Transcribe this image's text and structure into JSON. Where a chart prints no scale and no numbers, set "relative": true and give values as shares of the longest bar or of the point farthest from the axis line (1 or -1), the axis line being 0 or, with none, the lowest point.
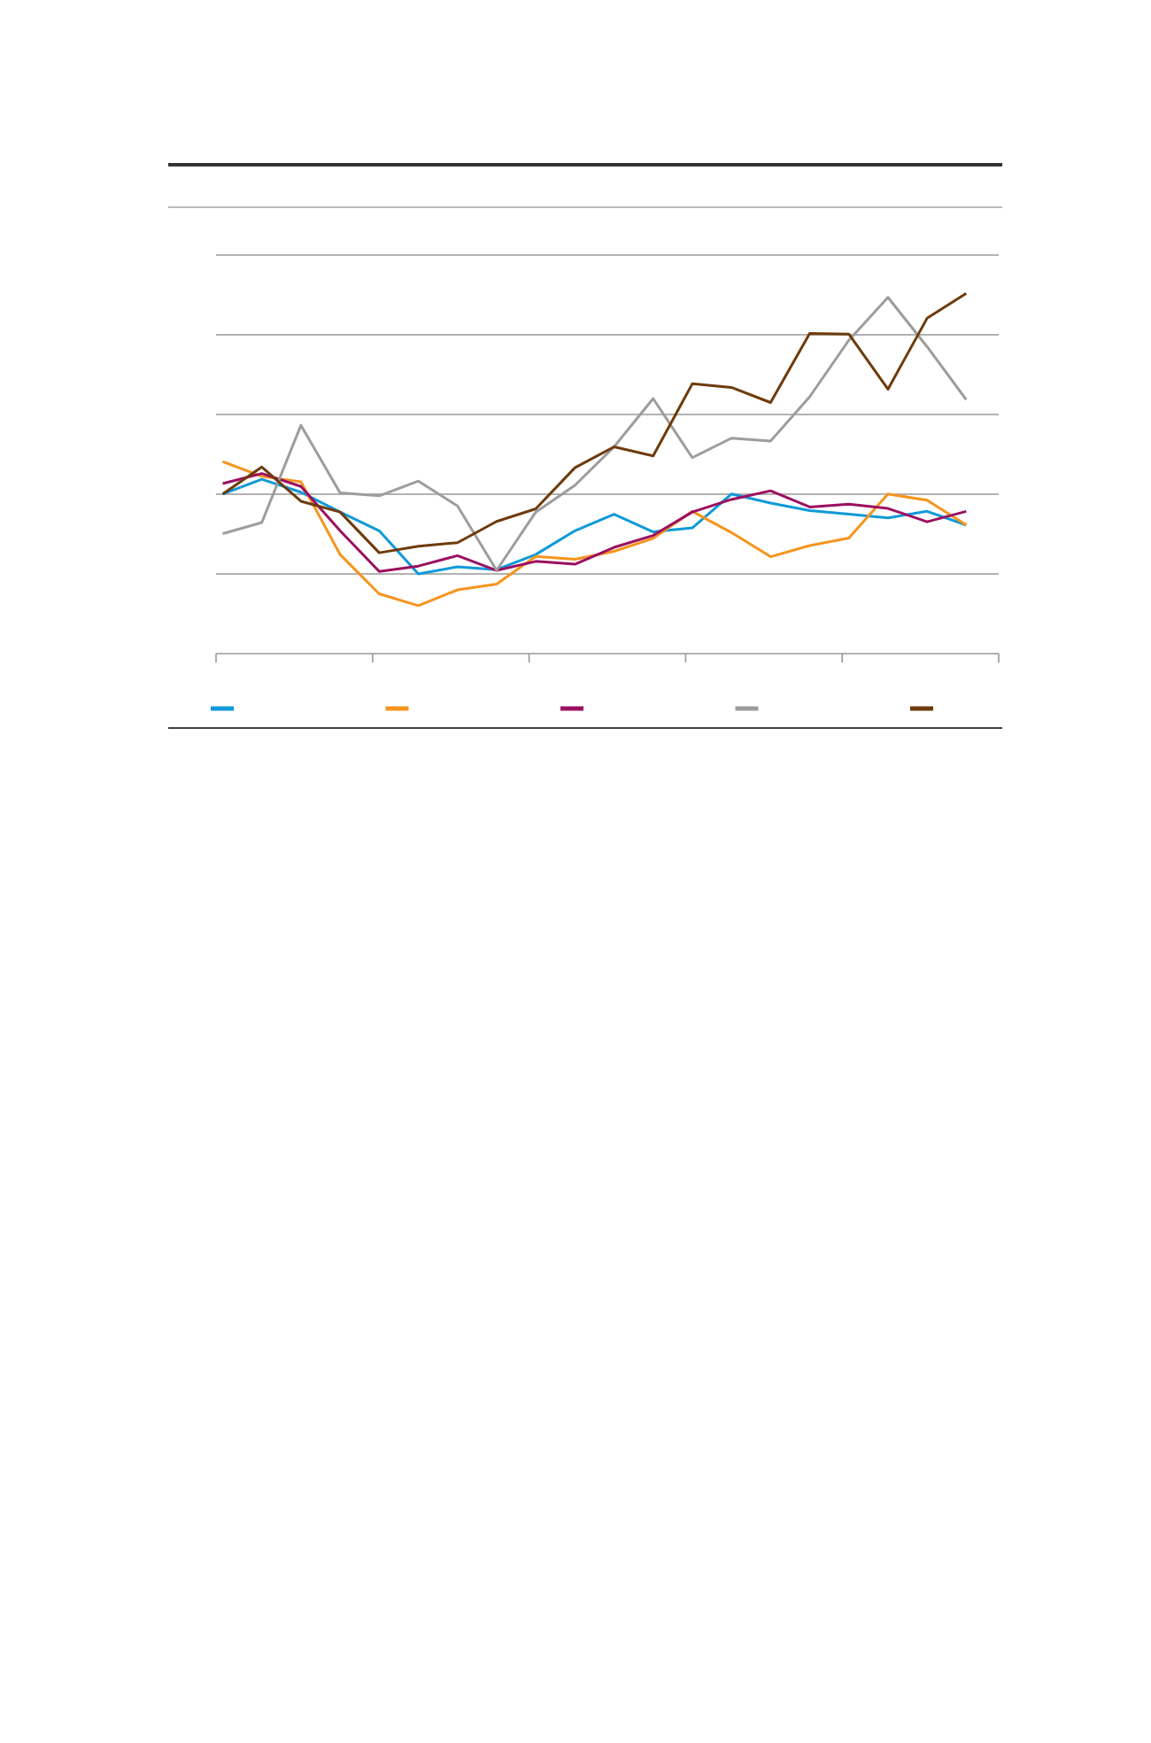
{
  "chart_data": {
    "type": "line",
    "relative": true,
    "grid": "y",
    "marker": "none",
    "line_style": "solid",
    "categories": [
      null,
      null,
      null,
      null,
      null,
      null,
      null,
      null,
      null,
      null,
      null,
      null,
      null,
      null,
      null,
      null,
      null,
      null,
      null,
      null
    ],
    "series": [
      {
        "color": "#0f9ad8",
        "values": [
          0.443,
          0.484,
          0.448,
          0.393,
          0.341,
          0.221,
          0.241,
          0.233,
          0.275,
          0.341,
          0.387,
          0.338,
          0.349,
          0.443,
          0.418,
          0.397,
          0.387,
          0.377,
          0.395,
          0.357
        ]
      },
      {
        "color": "#f7941d",
        "values": [
          0.533,
          0.492,
          0.477,
          0.275,
          0.166,
          0.133,
          0.177,
          0.193,
          0.27,
          0.262,
          0.284,
          0.32,
          0.395,
          0.336,
          0.269,
          0.3,
          0.321,
          0.443,
          0.426,
          0.357
        ]
      },
      {
        "color": "#9b1060",
        "values": [
          0.472,
          0.5,
          0.464,
          0.341,
          0.228,
          0.243,
          0.272,
          0.231,
          0.256,
          0.248,
          0.295,
          0.328,
          0.393,
          0.428,
          0.452,
          0.407,
          0.415,
          0.403,
          0.366,
          0.395
        ]
      },
      {
        "color": "#9d9d9d",
        "values": [
          0.333,
          0.364,
          0.634,
          0.446,
          0.438,
          0.479,
          0.41,
          0.231,
          0.393,
          0.467,
          0.574,
          0.708,
          0.544,
          0.598,
          0.59,
          0.713,
          0.87,
          0.989,
          0.852,
          0.705
        ]
      },
      {
        "color": "#6e3b0c",
        "values": [
          0.443,
          0.518,
          0.423,
          0.393,
          0.28,
          0.298,
          0.308,
          0.367,
          0.402,
          0.516,
          0.574,
          0.549,
          0.749,
          0.739,
          0.697,
          0.889,
          0.887,
          0.734,
          0.931,
          1.0
        ]
      }
    ]
  }
}
